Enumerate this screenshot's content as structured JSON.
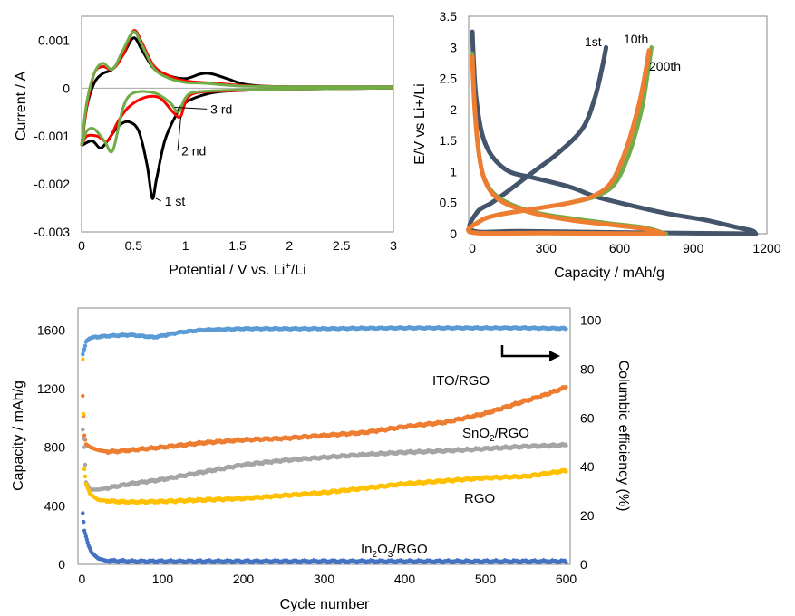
{
  "chart_data": [
    {
      "id": "cv",
      "type": "line",
      "xlabel": "Potential / V vs. Li",
      "xlabel_sup": "+",
      "xlabel_tail": "/Li",
      "ylabel": "Current / A",
      "xlim": [
        0,
        3
      ],
      "ylim": [
        -0.003,
        0.0015
      ],
      "xticks": [
        0,
        0.5,
        1,
        1.5,
        2,
        2.5,
        3
      ],
      "xtick_labels": [
        "0",
        "0.5",
        "1",
        "1.5",
        "2",
        "2.5",
        "3"
      ],
      "yticks": [
        0.001,
        0,
        -0.001,
        -0.002,
        -0.003
      ],
      "ytick_labels": [
        "0.001",
        "0",
        "-0.001",
        "-0.002",
        "-0.003"
      ],
      "grid": false,
      "series": [
        {
          "color": "#000000",
          "anodic": [
            [
              0.0,
              -0.0012
            ],
            [
              0.05,
              -0.0004
            ],
            [
              0.12,
              0.0001
            ],
            [
              0.2,
              0.0003
            ],
            [
              0.3,
              0.0004
            ],
            [
              0.4,
              0.0007
            ],
            [
              0.5,
              0.00105
            ],
            [
              0.58,
              0.0008
            ],
            [
              0.7,
              0.0004
            ],
            [
              0.85,
              0.00025
            ],
            [
              1.0,
              0.0002
            ],
            [
              1.15,
              0.0003
            ],
            [
              1.25,
              0.0003
            ],
            [
              1.4,
              0.0002
            ],
            [
              1.6,
              7e-05
            ],
            [
              2.0,
              3e-05
            ],
            [
              3.0,
              3e-05
            ]
          ],
          "cathodic": [
            [
              3.0,
              0.0
            ],
            [
              2.0,
              -2e-05
            ],
            [
              1.5,
              -5e-05
            ],
            [
              1.25,
              -0.0001
            ],
            [
              1.0,
              -0.0003
            ],
            [
              0.9,
              -0.0006
            ],
            [
              0.8,
              -0.0011
            ],
            [
              0.72,
              -0.0019
            ],
            [
              0.68,
              -0.0023
            ],
            [
              0.63,
              -0.0016
            ],
            [
              0.55,
              -0.0009
            ],
            [
              0.45,
              -0.0007
            ],
            [
              0.35,
              -0.0008
            ],
            [
              0.25,
              -0.0011
            ],
            [
              0.18,
              -0.00125
            ],
            [
              0.1,
              -0.0011
            ],
            [
              0.0,
              -0.0012
            ]
          ]
        },
        {
          "color": "#ff0000",
          "anodic": [
            [
              0.0,
              -0.0012
            ],
            [
              0.05,
              -0.0004
            ],
            [
              0.12,
              0.0003
            ],
            [
              0.2,
              0.00045
            ],
            [
              0.3,
              0.0004
            ],
            [
              0.4,
              0.0007
            ],
            [
              0.5,
              0.0012
            ],
            [
              0.58,
              0.00095
            ],
            [
              0.7,
              0.00045
            ],
            [
              0.85,
              0.00025
            ],
            [
              1.0,
              0.00015
            ],
            [
              1.15,
              0.00012
            ],
            [
              1.3,
              0.0001
            ],
            [
              1.6,
              5e-05
            ],
            [
              2.0,
              3e-05
            ],
            [
              3.0,
              3e-05
            ]
          ],
          "cathodic": [
            [
              3.0,
              0.0
            ],
            [
              2.0,
              -2e-05
            ],
            [
              1.5,
              -5e-05
            ],
            [
              1.1,
              -0.0001
            ],
            [
              1.0,
              -0.0003
            ],
            [
              0.95,
              -0.0006
            ],
            [
              0.88,
              -0.0005
            ],
            [
              0.75,
              -0.0002
            ],
            [
              0.6,
              -0.0002
            ],
            [
              0.45,
              -0.0004
            ],
            [
              0.35,
              -0.0007
            ],
            [
              0.25,
              -0.0011
            ],
            [
              0.15,
              -0.001
            ],
            [
              0.05,
              -0.001
            ],
            [
              0.0,
              -0.0012
            ]
          ]
        },
        {
          "color": "#70ad47",
          "anodic": [
            [
              0.0,
              -0.0012
            ],
            [
              0.05,
              -0.0003
            ],
            [
              0.12,
              0.0003
            ],
            [
              0.2,
              0.00052
            ],
            [
              0.3,
              0.0004
            ],
            [
              0.4,
              0.0008
            ],
            [
              0.5,
              0.00118
            ],
            [
              0.58,
              0.0009
            ],
            [
              0.7,
              0.0004
            ],
            [
              0.85,
              0.0002
            ],
            [
              1.0,
              0.00012
            ],
            [
              1.2,
              0.0001
            ],
            [
              1.5,
              5e-05
            ],
            [
              2.0,
              3e-05
            ],
            [
              3.0,
              3e-05
            ]
          ],
          "cathodic": [
            [
              3.0,
              0.0
            ],
            [
              2.0,
              -2e-05
            ],
            [
              1.5,
              -4e-05
            ],
            [
              1.1,
              -8e-05
            ],
            [
              1.0,
              -0.0002
            ],
            [
              0.93,
              -0.0005
            ],
            [
              0.85,
              -0.0003
            ],
            [
              0.7,
              -0.0001
            ],
            [
              0.5,
              -0.0001
            ],
            [
              0.4,
              -0.0004
            ],
            [
              0.3,
              -0.0013
            ],
            [
              0.22,
              -0.0011
            ],
            [
              0.12,
              -0.00085
            ],
            [
              0.05,
              -0.0009
            ],
            [
              0.0,
              -0.0012
            ]
          ]
        }
      ],
      "annotations": [
        {
          "text": "1 st",
          "x": 0.68,
          "y": -0.0023,
          "label_x": 0.8,
          "label_y": -0.00245
        },
        {
          "text": "2 nd",
          "x": 0.92,
          "y": -0.0006,
          "label_x": 0.96,
          "label_y": -0.0014
        },
        {
          "text": "3 rd",
          "x": 0.86,
          "y": -0.0004,
          "label_x": 1.24,
          "label_y": -0.00053
        }
      ]
    },
    {
      "id": "charge-discharge",
      "type": "line",
      "xlabel": "Capacity / mAh/g",
      "ylabel": "E/V vs Li+/Li",
      "xlim": [
        -15,
        1200
      ],
      "ylim": [
        0,
        3.5
      ],
      "xticks": [
        0,
        300,
        600,
        900,
        1200
      ],
      "xtick_labels": [
        "0",
        "300",
        "600",
        "900",
        "1200"
      ],
      "yticks": [
        0,
        0.5,
        1,
        1.5,
        2,
        2.5,
        3,
        3.5
      ],
      "ytick_labels": [
        "0",
        "0.5",
        "1",
        "1.5",
        "2",
        "2.5",
        "3",
        "3.5"
      ],
      "grid": false,
      "series": [
        {
          "label": "1st",
          "color": "#44546a",
          "discharge": [
            [
              0,
              3.25
            ],
            [
              5,
              2.8
            ],
            [
              15,
              2.2
            ],
            [
              40,
              1.6
            ],
            [
              80,
              1.25
            ],
            [
              150,
              1.0
            ],
            [
              250,
              0.9
            ],
            [
              400,
              0.75
            ],
            [
              500,
              0.6
            ],
            [
              650,
              0.45
            ],
            [
              800,
              0.32
            ],
            [
              950,
              0.22
            ],
            [
              1080,
              0.1
            ],
            [
              1140,
              0.05
            ],
            [
              1155,
              0.0
            ]
          ],
          "charge": [
            [
              1155,
              0.0
            ],
            [
              600,
              0.02
            ],
            [
              200,
              0.04
            ],
            [
              0,
              0.05
            ],
            [
              20,
              0.35
            ],
            [
              80,
              0.5
            ],
            [
              150,
              0.7
            ],
            [
              250,
              1.0
            ],
            [
              350,
              1.3
            ],
            [
              450,
              1.7
            ],
            [
              500,
              2.2
            ],
            [
              530,
              2.7
            ],
            [
              545,
              3.0
            ]
          ]
        },
        {
          "label": "10th",
          "color": "#70ad47",
          "discharge": [
            [
              0,
              2.9
            ],
            [
              10,
              2.0
            ],
            [
              30,
              1.2
            ],
            [
              60,
              0.8
            ],
            [
              120,
              0.55
            ],
            [
              250,
              0.35
            ],
            [
              400,
              0.25
            ],
            [
              550,
              0.17
            ],
            [
              700,
              0.1
            ],
            [
              790,
              0.0
            ]
          ],
          "charge": [
            [
              790,
              0.0
            ],
            [
              300,
              0.01
            ],
            [
              0,
              0.02
            ],
            [
              30,
              0.2
            ],
            [
              100,
              0.3
            ],
            [
              250,
              0.4
            ],
            [
              400,
              0.5
            ],
            [
              500,
              0.6
            ],
            [
              580,
              0.8
            ],
            [
              640,
              1.3
            ],
            [
              690,
              2.0
            ],
            [
              715,
              2.6
            ],
            [
              730,
              3.0
            ]
          ]
        },
        {
          "label": "200th",
          "color": "#ed7d31",
          "discharge": [
            [
              0,
              2.85
            ],
            [
              10,
              2.0
            ],
            [
              30,
              1.2
            ],
            [
              60,
              0.78
            ],
            [
              120,
              0.52
            ],
            [
              250,
              0.33
            ],
            [
              400,
              0.22
            ],
            [
              550,
              0.15
            ],
            [
              700,
              0.08
            ],
            [
              780,
              0.0
            ]
          ],
          "charge": [
            [
              780,
              0.0
            ],
            [
              300,
              0.01
            ],
            [
              0,
              0.02
            ],
            [
              30,
              0.2
            ],
            [
              100,
              0.3
            ],
            [
              250,
              0.4
            ],
            [
              400,
              0.5
            ],
            [
              500,
              0.62
            ],
            [
              570,
              0.85
            ],
            [
              630,
              1.4
            ],
            [
              680,
              2.1
            ],
            [
              705,
              2.6
            ],
            [
              720,
              2.95
            ]
          ]
        }
      ]
    },
    {
      "id": "cycling",
      "type": "scatter",
      "xlabel": "Cycle number",
      "ylabel": "Capacity / mAh/g",
      "y2label": "Columbic efficiency (%)",
      "xlim": [
        -5,
        605
      ],
      "ylim": [
        0,
        1750
      ],
      "y2lim": [
        0,
        105
      ],
      "xticks": [
        0,
        100,
        200,
        300,
        400,
        500,
        600
      ],
      "xtick_labels": [
        "0",
        "100",
        "200",
        "300",
        "400",
        "500",
        "600"
      ],
      "yticks": [
        0,
        400,
        800,
        1200,
        1600
      ],
      "ytick_labels": [
        "0",
        "400",
        "800",
        "1200",
        "1600"
      ],
      "y2ticks": [
        0,
        20,
        40,
        60,
        80,
        100
      ],
      "y2tick_labels": [
        "0",
        "20",
        "40",
        "60",
        "80",
        "100"
      ],
      "grid": false,
      "arrow_direction": "right",
      "series": [
        {
          "name": "ITO/RGO",
          "color": "#ed7d31",
          "axis": "left",
          "x": [
            1,
            3,
            5,
            10,
            20,
            30,
            40,
            60,
            100,
            150,
            200,
            250,
            300,
            350,
            400,
            450,
            500,
            540,
            570,
            600
          ],
          "y": [
            1150,
            880,
            820,
            800,
            780,
            770,
            770,
            780,
            800,
            830,
            850,
            860,
            880,
            900,
            940,
            970,
            1030,
            1100,
            1150,
            1210
          ]
        },
        {
          "name": "SnO",
          "name_sub": "2",
          "name_tail": "/RGO",
          "color": "#a5a5a5",
          "axis": "left",
          "x": [
            1,
            3,
            5,
            10,
            20,
            40,
            60,
            100,
            150,
            200,
            250,
            300,
            350,
            400,
            450,
            500,
            550,
            600
          ],
          "y": [
            920,
            800,
            560,
            510,
            510,
            530,
            550,
            580,
            630,
            680,
            710,
            730,
            750,
            765,
            775,
            790,
            805,
            815
          ]
        },
        {
          "name": "RGO",
          "color": "#ffc000",
          "axis": "left",
          "x": [
            1,
            3,
            5,
            10,
            20,
            40,
            60,
            100,
            150,
            200,
            250,
            300,
            350,
            400,
            450,
            500,
            550,
            600
          ],
          "y": [
            1400,
            650,
            550,
            480,
            440,
            430,
            425,
            430,
            440,
            450,
            470,
            490,
            520,
            550,
            570,
            590,
            600,
            640
          ]
        },
        {
          "name": "In",
          "name_sub": "2",
          "name_mid": "O",
          "name_sub2": "3",
          "name_tail": "/RGO",
          "color": "#4472c4",
          "axis": "left",
          "x": [
            1,
            3,
            5,
            8,
            12,
            20,
            30,
            60,
            100,
            200,
            300,
            400,
            500,
            600
          ],
          "y": [
            350,
            230,
            190,
            130,
            80,
            40,
            25,
            20,
            20,
            20,
            20,
            20,
            20,
            20
          ]
        },
        {
          "name": "Columbic efficiency",
          "color": "#5b9bd5",
          "axis": "right",
          "x": [
            1,
            3,
            5,
            8,
            15,
            30,
            60,
            90,
            120,
            150,
            200,
            250,
            300,
            350,
            400,
            450,
            500,
            550,
            600
          ],
          "y": [
            86,
            88,
            91,
            92.5,
            93,
            93.5,
            94,
            93,
            95,
            96,
            96.5,
            96.5,
            96.5,
            96.7,
            96.8,
            96.8,
            96.8,
            96.8,
            96.6
          ]
        }
      ]
    }
  ]
}
